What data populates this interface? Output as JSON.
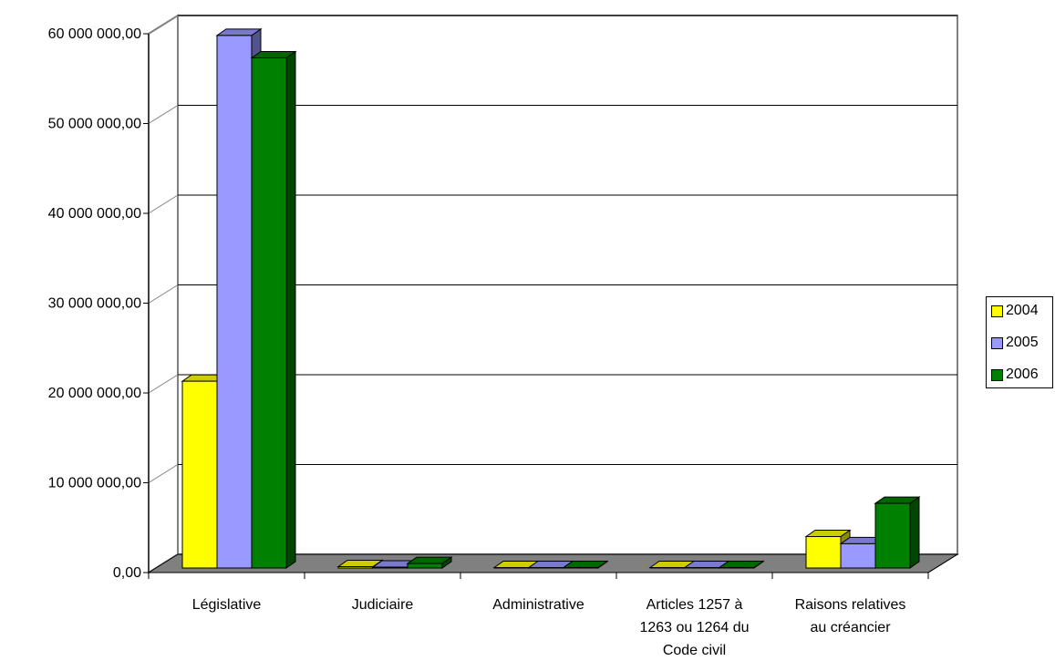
{
  "chart_data": {
    "type": "bar",
    "title": "",
    "xlabel": "",
    "ylabel": "",
    "ylim": [
      0,
      60000000
    ],
    "yticks": [
      "0,00",
      "10 000 000,00",
      "20 000 000,00",
      "30 000 000,00",
      "40 000 000,00",
      "50 000 000,00",
      "60 000 000,00"
    ],
    "categories": [
      [
        "Législative"
      ],
      [
        "Judiciaire"
      ],
      [
        "Administrative"
      ],
      [
        "Articles 1257 à",
        "1263 ou 1264 du",
        "Code civil"
      ],
      [
        "Raisons relatives",
        "au créancier"
      ]
    ],
    "series": [
      {
        "name": "2004",
        "color": "#ffff00",
        "values": [
          20800000,
          150000,
          50000,
          50000,
          3500000
        ]
      },
      {
        "name": "2005",
        "color": "#9999ff",
        "values": [
          59300000,
          100000,
          50000,
          50000,
          2700000
        ]
      },
      {
        "name": "2006",
        "color": "#008000",
        "values": [
          56800000,
          500000,
          50000,
          50000,
          7200000
        ]
      }
    ],
    "grid": true,
    "legend_position": "right",
    "style": "3d-clustered-column"
  }
}
